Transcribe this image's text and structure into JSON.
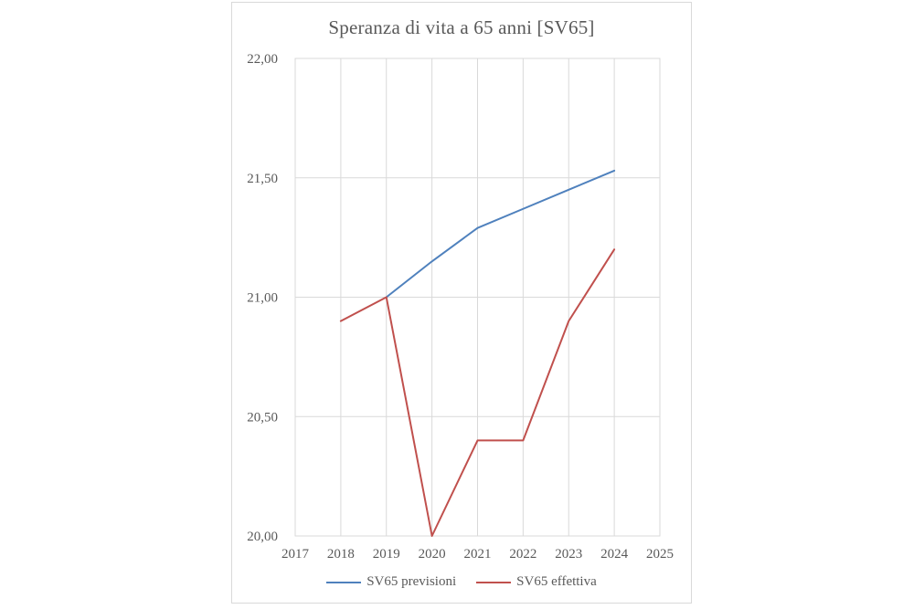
{
  "chart_data": {
    "type": "line",
    "title": "Speranza di vita a 65 anni [SV65]",
    "xlabel": "",
    "ylabel": "",
    "xlim": [
      2017,
      2025
    ],
    "ylim": [
      20.0,
      22.0
    ],
    "x_ticks": [
      2017,
      2018,
      2019,
      2020,
      2021,
      2022,
      2023,
      2024,
      2025
    ],
    "x_tick_labels": [
      "2017",
      "2018",
      "2019",
      "2020",
      "2021",
      "2022",
      "2023",
      "2024",
      "2025"
    ],
    "y_ticks": [
      20.0,
      20.5,
      21.0,
      21.5,
      22.0
    ],
    "y_tick_labels": [
      "20,00",
      "20,50",
      "21,00",
      "21,50",
      "22,00"
    ],
    "grid": true,
    "legend_position": "bottom",
    "series": [
      {
        "name": "SV65 previsioni",
        "color": "#4F81BD",
        "points": [
          [
            2019,
            21.0
          ],
          [
            2020,
            21.15
          ],
          [
            2021,
            21.29
          ],
          [
            2022,
            21.37
          ],
          [
            2023,
            21.45
          ],
          [
            2024,
            21.53
          ]
        ]
      },
      {
        "name": "SV65 effettiva",
        "color": "#C0504D",
        "points": [
          [
            2018,
            20.9
          ],
          [
            2019,
            21.0
          ],
          [
            2020,
            20.0
          ],
          [
            2021,
            20.4
          ],
          [
            2022,
            20.4
          ],
          [
            2023,
            20.9
          ],
          [
            2024,
            21.2
          ]
        ]
      }
    ],
    "colors": {
      "grid": "#D9D9D9",
      "plot_border": "#D9D9D9",
      "chart_border": "#D9D9D9",
      "text": "#595959",
      "background": "#FFFFFF"
    }
  }
}
